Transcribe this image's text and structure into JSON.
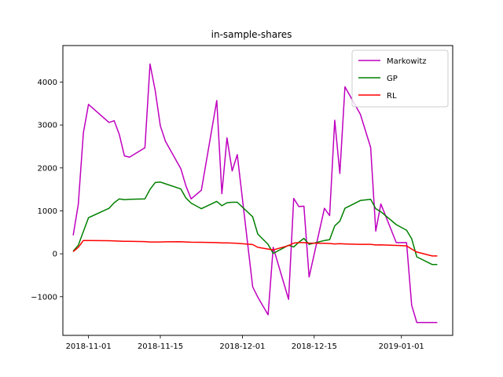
{
  "chart_data": {
    "type": "line",
    "title": "in-sample-shares",
    "xlabel": "",
    "ylabel": "",
    "x_axis": "date",
    "xlim": [
      "2018-10-27",
      "2019-01-11"
    ],
    "ylim": [
      -1900,
      4850
    ],
    "xticks": [
      "2018-11-01",
      "2018-11-15",
      "2018-12-01",
      "2018-12-15",
      "2019-01-01"
    ],
    "yticks": [
      -1000,
      0,
      1000,
      2000,
      3000,
      4000
    ],
    "grid": false,
    "legend_position": "top-right",
    "x": [
      "2018-10-29",
      "2018-10-30",
      "2018-10-31",
      "2018-11-01",
      "2018-11-05",
      "2018-11-06",
      "2018-11-07",
      "2018-11-08",
      "2018-11-09",
      "2018-11-12",
      "2018-11-13",
      "2018-11-14",
      "2018-11-15",
      "2018-11-16",
      "2018-11-19",
      "2018-11-20",
      "2018-11-21",
      "2018-11-23",
      "2018-11-26",
      "2018-11-27",
      "2018-11-28",
      "2018-11-29",
      "2018-11-30",
      "2018-12-03",
      "2018-12-04",
      "2018-12-06",
      "2018-12-07",
      "2018-12-10",
      "2018-12-11",
      "2018-12-12",
      "2018-12-13",
      "2018-12-14",
      "2018-12-17",
      "2018-12-18",
      "2018-12-19",
      "2018-12-20",
      "2018-12-21",
      "2018-12-24",
      "2018-12-26",
      "2018-12-27",
      "2018-12-28",
      "2018-12-31",
      "2019-01-02",
      "2019-01-03",
      "2019-01-04",
      "2019-01-07",
      "2019-01-08"
    ],
    "series": [
      {
        "name": "Markowitz",
        "color": "#bf00bf",
        "values": [
          430,
          1150,
          2820,
          3480,
          3060,
          3100,
          2780,
          2280,
          2250,
          2470,
          4420,
          3800,
          2980,
          2620,
          1980,
          1580,
          1280,
          1480,
          3570,
          1400,
          2700,
          1930,
          2310,
          -770,
          -1010,
          -1420,
          150,
          -1060,
          1290,
          1100,
          1110,
          -540,
          1060,
          890,
          3110,
          1870,
          3890,
          3250,
          2480,
          530,
          1160,
          260,
          260,
          -1200,
          -1600,
          -1600,
          -1600
        ]
      },
      {
        "name": "GP",
        "color": "#008000",
        "values": [
          60,
          200,
          520,
          840,
          1060,
          1190,
          1280,
          1260,
          1270,
          1280,
          1500,
          1660,
          1670,
          1630,
          1510,
          1300,
          1180,
          1050,
          1220,
          1120,
          1190,
          1200,
          1200,
          860,
          460,
          220,
          10,
          200,
          160,
          270,
          360,
          220,
          310,
          330,
          650,
          760,
          1060,
          1240,
          1270,
          1050,
          980,
          680,
          550,
          350,
          -70,
          -250,
          -250
        ]
      },
      {
        "name": "RL",
        "color": "#ff0000",
        "values": [
          50,
          150,
          310,
          310,
          305,
          300,
          295,
          290,
          290,
          285,
          275,
          275,
          275,
          278,
          280,
          275,
          270,
          268,
          260,
          255,
          255,
          250,
          245,
          215,
          150,
          110,
          90,
          190,
          250,
          260,
          260,
          250,
          245,
          240,
          230,
          235,
          230,
          220,
          220,
          205,
          210,
          195,
          185,
          110,
          40,
          -50,
          -50
        ]
      }
    ]
  }
}
